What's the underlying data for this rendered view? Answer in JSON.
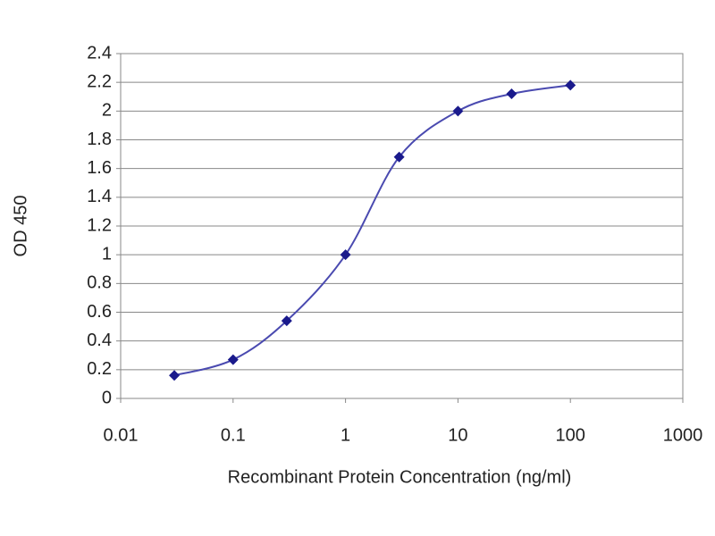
{
  "chart_data": {
    "type": "line",
    "xlabel": "Recombinant Protein Concentration (ng/ml)",
    "ylabel": "OD 450",
    "x": [
      0.03,
      0.1,
      0.3,
      1,
      3,
      10,
      30,
      100
    ],
    "values": [
      0.16,
      0.27,
      0.54,
      1.0,
      1.68,
      2.0,
      2.12,
      2.18
    ],
    "color": "#1a1a8c",
    "xscale": "log",
    "xlim": [
      0.01,
      1000
    ],
    "xticks": [
      0.01,
      0.1,
      1,
      10,
      100,
      1000
    ],
    "ylim": [
      0,
      2.4
    ],
    "yticks": [
      0,
      0.2,
      0.4,
      0.6,
      0.8,
      1,
      1.2,
      1.4,
      1.6,
      1.8,
      2,
      2.2,
      2.4
    ],
    "grid": true
  }
}
